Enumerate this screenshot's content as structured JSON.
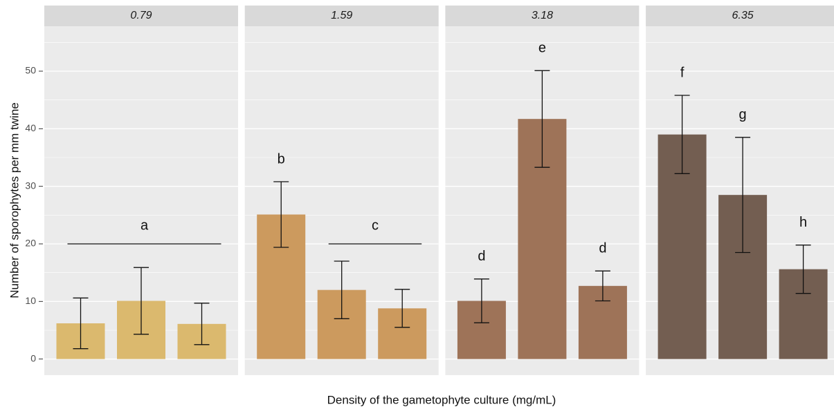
{
  "chart_data": {
    "type": "bar",
    "ylabel": "Number of sporophytes per mm twine",
    "xlabel": "Density of the gametophyte culture (mg/mL)",
    "ylim": [
      -2.8,
      57.8
    ],
    "yticks": [
      0,
      10,
      20,
      30,
      40,
      50
    ],
    "minor_yticks": [
      5,
      15,
      25,
      35,
      45,
      55
    ],
    "grid": true,
    "facets": [
      {
        "title": "0.79",
        "color": "#dbb96e",
        "categories": [
          null,
          null,
          null
        ],
        "values": [
          6.2,
          10.1,
          6.1
        ],
        "errors": [
          4.4,
          5.8,
          3.6
        ],
        "annotations": [
          {
            "label": "a",
            "from": 0,
            "to": 2,
            "y": 20
          }
        ]
      },
      {
        "title": "1.59",
        "color": "#cc9a5e",
        "categories": [
          null,
          null,
          null
        ],
        "values": [
          25.1,
          12.0,
          8.8
        ],
        "errors": [
          5.7,
          5.0,
          3.3
        ],
        "annotations": [
          {
            "label": "b",
            "from": 0,
            "to": 0
          },
          {
            "label": "c",
            "from": 1,
            "to": 2,
            "y": 20
          }
        ]
      },
      {
        "title": "3.18",
        "color": "#9e7358",
        "categories": [
          null,
          null,
          null
        ],
        "values": [
          10.1,
          41.7,
          12.7
        ],
        "errors": [
          3.8,
          8.4,
          2.6
        ],
        "annotations": [
          {
            "label": "d",
            "from": 0,
            "to": 0
          },
          {
            "label": "e",
            "from": 1,
            "to": 1
          },
          {
            "label": "d",
            "from": 2,
            "to": 2
          }
        ]
      },
      {
        "title": "6.35",
        "color": "#735e51",
        "categories": [
          null,
          null,
          null
        ],
        "values": [
          39.0,
          28.5,
          15.6
        ],
        "errors": [
          6.8,
          10.0,
          4.2
        ],
        "annotations": [
          {
            "label": "f",
            "from": 0,
            "to": 0
          },
          {
            "label": "g",
            "from": 1,
            "to": 1
          },
          {
            "label": "h",
            "from": 2,
            "to": 2
          }
        ]
      }
    ]
  }
}
